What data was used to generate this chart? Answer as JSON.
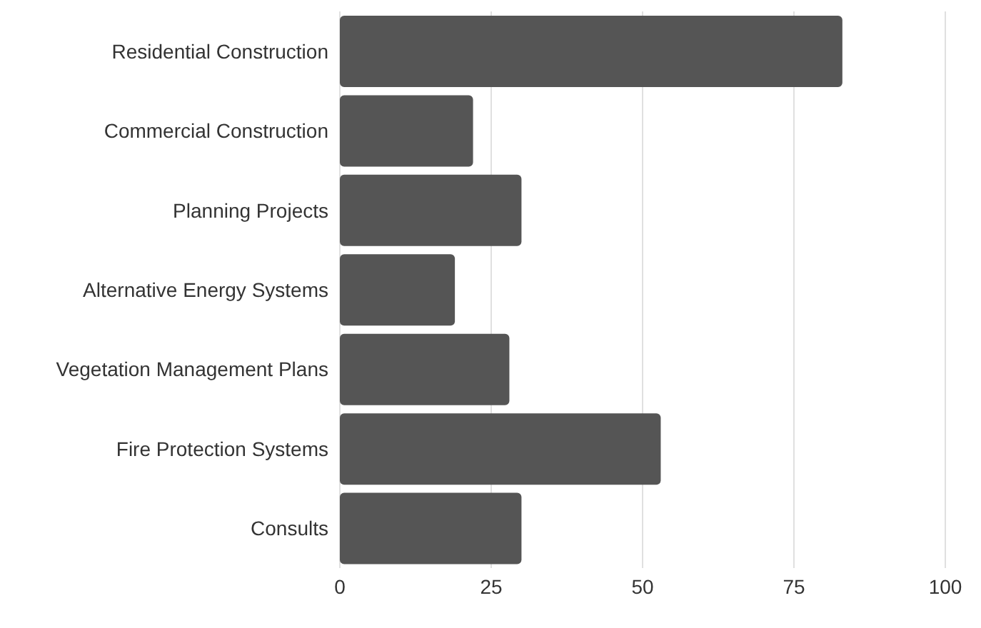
{
  "chart_data": {
    "type": "bar",
    "orientation": "horizontal",
    "categories": [
      "Residential Construction",
      "Commercial Construction",
      "Planning Projects",
      "Alternative Energy Systems",
      "Vegetation Management Plans",
      "Fire Protection Systems",
      "Consults"
    ],
    "values": [
      83,
      22,
      30,
      19,
      28,
      53,
      30
    ],
    "color": "#555555",
    "xlim": [
      0,
      100
    ],
    "xticks": [
      0,
      25,
      50,
      75,
      100
    ],
    "grid": "x"
  }
}
